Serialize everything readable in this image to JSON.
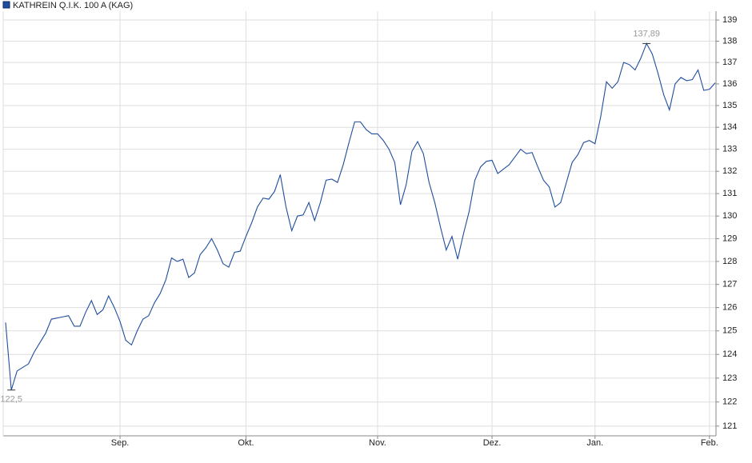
{
  "chart_data": {
    "type": "line",
    "series": [
      {
        "name": "KATHREIN Q.I.K. 100 A (KAG)",
        "color": "#1f4e9c",
        "values": [
          125.36,
          122.5,
          123.3,
          123.45,
          123.6,
          124.1,
          124.5,
          124.9,
          125.5,
          125.55,
          125.6,
          125.65,
          125.2,
          125.2,
          125.8,
          126.3,
          125.7,
          125.9,
          126.5,
          126.0,
          125.4,
          124.6,
          124.4,
          125.0,
          125.5,
          125.65,
          126.2,
          126.6,
          127.2,
          128.15,
          128.0,
          128.1,
          127.3,
          127.5,
          128.3,
          128.6,
          129.0,
          128.5,
          127.9,
          127.75,
          128.4,
          128.45,
          129.1,
          129.7,
          130.4,
          130.8,
          130.75,
          131.1,
          131.85,
          130.4,
          129.35,
          130.0,
          130.05,
          130.6,
          129.8,
          130.6,
          131.6,
          131.65,
          131.5,
          132.3,
          133.3,
          134.25,
          134.25,
          133.9,
          133.7,
          133.7,
          133.4,
          133.0,
          132.4,
          130.5,
          131.4,
          132.9,
          133.35,
          132.8,
          131.5,
          130.6,
          129.5,
          128.5,
          129.1,
          128.1,
          129.2,
          130.2,
          131.6,
          132.2,
          132.45,
          132.5,
          131.9,
          132.1,
          132.3,
          132.65,
          133.0,
          132.8,
          132.85,
          132.2,
          131.6,
          131.3,
          130.4,
          130.6,
          131.5,
          132.4,
          132.75,
          133.3,
          133.4,
          133.25,
          134.5,
          136.1,
          135.8,
          136.1,
          137.0,
          136.9,
          136.65,
          137.2,
          137.89,
          137.4,
          136.5,
          135.5,
          134.8,
          136.0,
          136.3,
          136.15,
          136.2,
          136.65,
          135.7,
          135.75,
          136.05
        ],
        "value_labels": [
          null,
          "122,5",
          null,
          null,
          null,
          null,
          null,
          null,
          null,
          null,
          null,
          null,
          null,
          null,
          null,
          null,
          null,
          null,
          null,
          null,
          null,
          null,
          null,
          null,
          null,
          null,
          null,
          null,
          null,
          null,
          null,
          null,
          null,
          null,
          null,
          null,
          null,
          null,
          null,
          null,
          null,
          null,
          null,
          null,
          null,
          null,
          null,
          null,
          null,
          null,
          null,
          null,
          null,
          null,
          null,
          null,
          null,
          null,
          null,
          null,
          null,
          null,
          null,
          null,
          null,
          null,
          null,
          null,
          null,
          null,
          null,
          null,
          null,
          null,
          null,
          null,
          null,
          null,
          null,
          null,
          null,
          null,
          null,
          null,
          null,
          null,
          null,
          null,
          null,
          null,
          null,
          null,
          null,
          null,
          null,
          null,
          null,
          null,
          null,
          null,
          null,
          null,
          null,
          null,
          null,
          null,
          null,
          null,
          null,
          null,
          null,
          null,
          "137,89",
          null,
          null,
          null,
          null,
          null,
          null,
          null,
          null,
          null,
          null,
          null,
          null
        ]
      }
    ],
    "categories": [
      null,
      null,
      null,
      null,
      null,
      null,
      null,
      null,
      null,
      null,
      null,
      null,
      null,
      null,
      null,
      null,
      null,
      null,
      null,
      null,
      "Sep.",
      null,
      null,
      null,
      null,
      null,
      null,
      null,
      null,
      null,
      null,
      null,
      null,
      null,
      null,
      null,
      null,
      null,
      null,
      null,
      null,
      null,
      "Okt.",
      null,
      null,
      null,
      null,
      null,
      null,
      null,
      null,
      null,
      null,
      null,
      null,
      null,
      null,
      null,
      null,
      null,
      null,
      null,
      null,
      null,
      null,
      "Nov.",
      null,
      null,
      null,
      null,
      null,
      null,
      null,
      null,
      null,
      null,
      null,
      null,
      null,
      null,
      null,
      null,
      null,
      null,
      null,
      "Dez.",
      null,
      null,
      null,
      null,
      null,
      null,
      null,
      null,
      null,
      null,
      null,
      null,
      null,
      null,
      null,
      null,
      null,
      "Jan.",
      null,
      null,
      null,
      null,
      null,
      null,
      null,
      null,
      null,
      null,
      null,
      null,
      null,
      null,
      null,
      null,
      null,
      null,
      null,
      "Feb.",
      null
    ],
    "ylim": [
      120.6,
      139.42
    ],
    "yticks": [
      121,
      122,
      123,
      124,
      125,
      126,
      127,
      128,
      129,
      130,
      131,
      132,
      133,
      134,
      135,
      136,
      137,
      138,
      139
    ],
    "log_scale": true,
    "grid": true,
    "legend": "top-left"
  }
}
